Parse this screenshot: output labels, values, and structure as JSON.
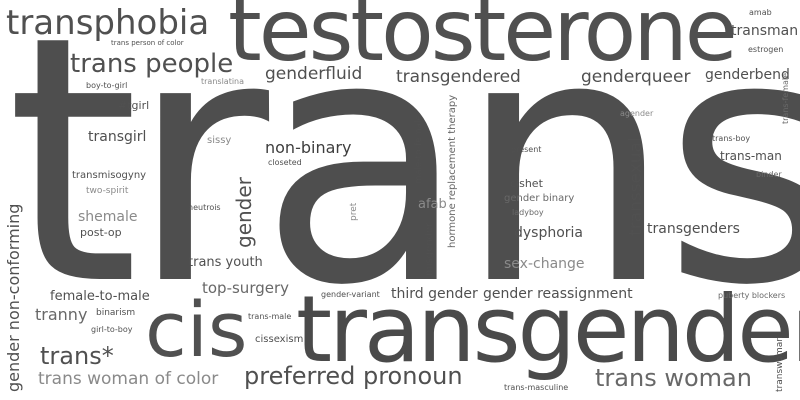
{
  "colors": {
    "background": "#ffffff",
    "dark": "#505050",
    "mid": "#686868",
    "light": "#8a8a8a"
  },
  "words": {
    "trans": "trans",
    "testosterone": "testosterone",
    "transgender": "transgender",
    "cis": "cis",
    "transphobia": "transphobia",
    "trans_people": "trans people",
    "preferred_pronoun": "preferred pronoun",
    "trans_woman": "trans woman",
    "transgendered": "transgendered",
    "genderqueer": "genderqueer",
    "genderfluid": "genderfluid",
    "genderbend": "genderbend",
    "transman": "transman",
    "non_binary": "non-binary",
    "trans_star": "trans*",
    "trans_woman_of_color": "trans woman of color",
    "tranny": "tranny",
    "female_to_male": "female-to-male",
    "third_gender": "third gender",
    "gender_reassignment": "gender reassignment",
    "top_surgery": "top-surgery",
    "trans_youth": "trans youth",
    "dysphoria": "dysphoria",
    "transgenders": "transgenders",
    "sex_change": "sex-change",
    "transgirl": "transgirl",
    "shemale": "shemale",
    "trans_man": "trans-man",
    "afab": "afab",
    "post_op": "post-op",
    "tgirl": "#tgirl",
    "cishet": "cishet",
    "transmisogyny": "transmisogyny",
    "gender_binary": "gender binary",
    "cissexism": "cissexism",
    "binarism": "binarism",
    "girl_to_boy": "girl-to-boy",
    "boy_to_girl": "boy-to-girl",
    "sissy": "sissy",
    "closeted": "closeted",
    "neutrois": "neutrois",
    "two_spirit": "two-spirit",
    "trans_person_of_color": "trans person of color",
    "translatina": "translatina",
    "amab": "amab",
    "estrogen": "estrogen",
    "agender": "agender",
    "trans_boy": "trans-boy",
    "binder": "binder",
    "present": "present",
    "ladyboy": "ladyboy",
    "gender_variant": "gender-variant",
    "trans_male": "trans-male",
    "puberty_blockers": "puberty blockers",
    "trans_masculine": "trans-masculine",
    "gender_non_conforming": "gender non-conforming",
    "gender": "gender",
    "transsexual": "transsexual",
    "hormone_replacement_therapy": "hormone replacement therapy",
    "male_to_female": "male-to-female",
    "misgender": "misgender",
    "pret": "pret",
    "trans_female": "trans-female",
    "transwoman": "transwoman"
  }
}
